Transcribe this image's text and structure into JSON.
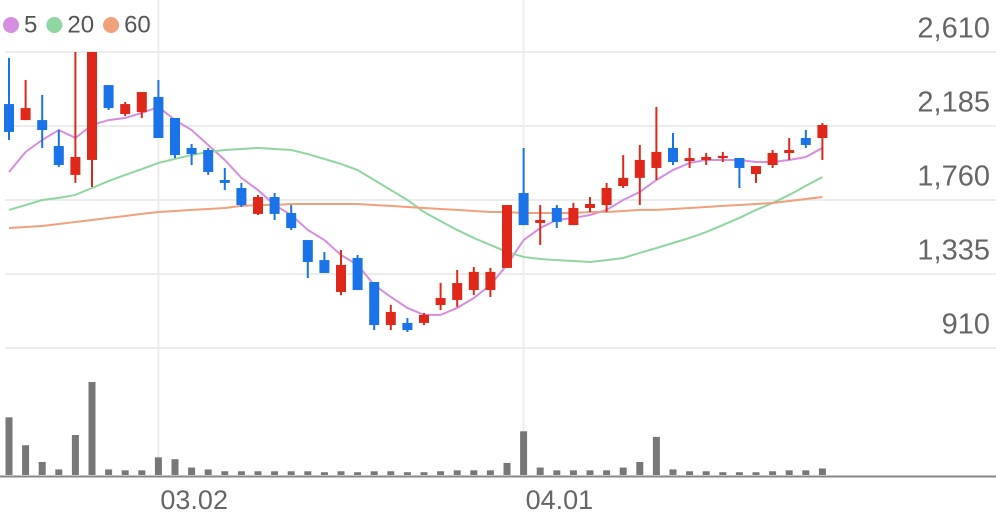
{
  "chart_data": {
    "type": "candlestick",
    "categories": [
      null,
      null,
      null,
      null,
      null,
      null,
      null,
      null,
      null,
      "03.02",
      null,
      null,
      null,
      null,
      null,
      null,
      null,
      null,
      null,
      null,
      null,
      null,
      null,
      null,
      null,
      null,
      null,
      null,
      null,
      null,
      null,
      "04.01",
      null,
      null,
      null,
      null,
      null,
      null,
      null,
      null,
      null,
      null,
      null,
      null,
      null,
      null,
      null,
      null,
      null,
      null
    ],
    "open": [
      2311,
      2219,
      2219,
      2070,
      1904,
      1990,
      2420,
      2254,
      2265,
      2352,
      2231,
      2059,
      2047,
      1875,
      1829,
      1680,
      1777,
      1685,
      1530,
      1415,
      1232,
      1427,
      1289,
      1042,
      1054,
      1054,
      1157,
      1186,
      1243,
      1243,
      1370,
      1800,
      1628,
      1714,
      1616,
      1714,
      1731,
      1840,
      1887,
      1944,
      2059,
      1984,
      1990,
      2001,
      2001,
      1909,
      1961,
      2030,
      2116,
      2116
    ],
    "high": [
      2576,
      2449,
      2363,
      2162,
      2610,
      2610,
      2420,
      2323,
      2380,
      2449,
      2231,
      2082,
      2059,
      1944,
      1858,
      1789,
      1800,
      1731,
      1530,
      1461,
      1473,
      1444,
      1289,
      1157,
      1082,
      1111,
      1283,
      1358,
      1375,
      1370,
      1731,
      2059,
      1731,
      1731,
      1743,
      1777,
      1858,
      2018,
      2076,
      2294,
      2145,
      2059,
      2030,
      2036,
      2001,
      1955,
      2047,
      2116,
      2162,
      2202
    ],
    "low": [
      2105,
      2219,
      2059,
      1950,
      1858,
      1835,
      2277,
      2242,
      2231,
      2116,
      2001,
      1961,
      1904,
      1817,
      1720,
      1674,
      1645,
      1588,
      1312,
      1341,
      1214,
      1243,
      1013,
      1013,
      1002,
      1042,
      1128,
      1146,
      1214,
      1203,
      1370,
      1616,
      1502,
      1599,
      1616,
      1691,
      1691,
      1829,
      1731,
      1875,
      1961,
      1944,
      1961,
      1978,
      1829,
      1858,
      1944,
      1990,
      2059,
      1990
    ],
    "close": [
      2151,
      2288,
      2162,
      1961,
      2007,
      2610,
      2288,
      2311,
      2380,
      2116,
      2018,
      2024,
      1921,
      1858,
      1731,
      1777,
      1680,
      1599,
      1404,
      1341,
      1387,
      1243,
      1042,
      1117,
      1013,
      1100,
      1197,
      1283,
      1347,
      1347,
      1731,
      1616,
      1645,
      1634,
      1714,
      1737,
      1829,
      1887,
      1990,
      2036,
      1978,
      2001,
      2007,
      2013,
      1944,
      1955,
      2030,
      2047,
      2076,
      2191
    ],
    "volume": [
      62,
      32,
      14,
      6,
      43,
      100,
      6,
      5,
      5,
      19,
      17,
      8,
      6,
      4,
      4,
      4,
      4,
      4,
      4,
      3,
      4,
      3,
      4,
      4,
      3,
      3,
      4,
      5,
      5,
      5,
      13,
      47,
      8,
      5,
      5,
      5,
      5,
      8,
      14,
      41,
      6,
      4,
      4,
      3,
      3,
      3,
      4,
      5,
      5,
      7
    ],
    "up_color": "#e0281a",
    "down_color": "#1a73e8",
    "volume_color": "#777777",
    "series": [
      {
        "name": "5",
        "color": "#d68fe0",
        "values": [
          1921,
          2036,
          2105,
          2162,
          2116,
          2191,
          2219,
          2231,
          2260,
          2294,
          2219,
          2162,
          2076,
          1990,
          1887,
          1817,
          1731,
          1674,
          1588,
          1530,
          1444,
          1387,
          1272,
          1203,
          1140,
          1100,
          1100,
          1140,
          1197,
          1272,
          1387,
          1530,
          1599,
          1645,
          1657,
          1674,
          1703,
          1760,
          1806,
          1875,
          1932,
          1973,
          1990,
          1990,
          1990,
          1978,
          1978,
          1990,
          2007,
          2059
        ]
      },
      {
        "name": "20",
        "color": "#8fd6a0",
        "values": [
          1703,
          1731,
          1760,
          1772,
          1789,
          1829,
          1869,
          1904,
          1938,
          1973,
          1996,
          2018,
          2036,
          2047,
          2053,
          2059,
          2053,
          2047,
          2024,
          1996,
          1967,
          1932,
          1875,
          1817,
          1760,
          1691,
          1639,
          1588,
          1542,
          1502,
          1462,
          1433,
          1421,
          1415,
          1410,
          1404,
          1415,
          1427,
          1456,
          1484,
          1513,
          1542,
          1576,
          1616,
          1657,
          1703,
          1743,
          1789,
          1841,
          1892
        ]
      },
      {
        "name": "60",
        "color": "#f0a07a",
        "values": [
          1599,
          1605,
          1611,
          1622,
          1634,
          1645,
          1657,
          1668,
          1680,
          1691,
          1697,
          1703,
          1708,
          1714,
          1726,
          1731,
          1731,
          1737,
          1737,
          1737,
          1737,
          1737,
          1731,
          1726,
          1720,
          1714,
          1708,
          1703,
          1697,
          1691,
          1691,
          1685,
          1685,
          1685,
          1685,
          1691,
          1691,
          1697,
          1703,
          1703,
          1708,
          1714,
          1720,
          1726,
          1731,
          1737,
          1743,
          1754,
          1766,
          1777
        ]
      }
    ],
    "ylim": [
      910,
      2610
    ],
    "yticks": [
      {
        "value": 2610,
        "label": "2,610"
      },
      {
        "value": 2185,
        "label": "2,185"
      },
      {
        "value": 1760,
        "label": "1,760"
      },
      {
        "value": 1335,
        "label": "1,335"
      },
      910
    ],
    "vlim": [
      0,
      100
    ],
    "grid": true
  }
}
